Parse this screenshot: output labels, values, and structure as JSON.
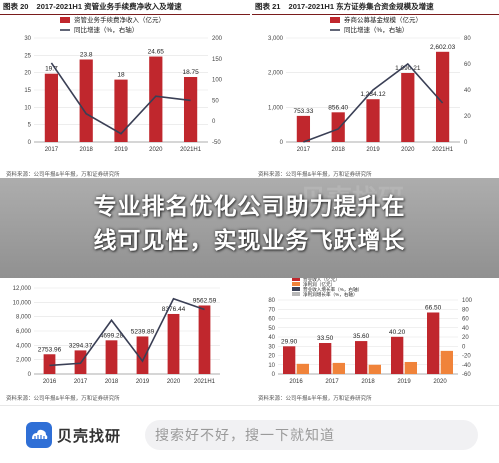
{
  "headline": {
    "line1": "专业排名优化公司助力提升在",
    "line2": "线可见性，实现业务飞跃增长"
  },
  "watermark": "贝壳找研",
  "footer": {
    "logo_text": "贝壳找研",
    "logo_icon": "shell-cloud-logo-icon",
    "search_placeholder": "搜索好不好，搜一下就知道",
    "accent_color": "#2f6fd6"
  },
  "colors": {
    "bar": "#c0272d",
    "line": "#3a3f55",
    "secondary_bar": "#f0833a"
  },
  "panels": [
    {
      "fig": "图表 20",
      "title": "2017-2021H1 资管业务手续费净收入及增速",
      "source": "资料来源：公司年报&半年报，万和证券研究所",
      "chart_data": {
        "type": "bar",
        "categories": [
          "2017",
          "2018",
          "2019",
          "2020",
          "2021H1"
        ],
        "series": [
          {
            "name": "资管业务手续费净收入（亿元）",
            "values": [
              19.7,
              23.8,
              18,
              24.65,
              18.75
            ],
            "labels": [
              "19.7",
              "23.8",
              "18",
              "24.65",
              "18.75"
            ]
          },
          {
            "name": "同比增速（%，右轴）",
            "values": [
              140,
              18,
              -30,
              60,
              50
            ]
          }
        ],
        "ylim": [
          0,
          30
        ],
        "yticks": [
          "0",
          "5",
          "10",
          "15",
          "20",
          "25",
          "30"
        ],
        "y2lim": [
          -50,
          200
        ],
        "y2ticks": [
          "-50",
          "0",
          "50",
          "100",
          "150",
          "200"
        ]
      }
    },
    {
      "fig": "图表 21",
      "title": "2017-2021H1 东方证券集合资金规模及增速",
      "source": "资料来源：公司年报&半年报，万和证券研究所",
      "chart_data": {
        "type": "bar",
        "categories": [
          "2017",
          "2018",
          "2019",
          "2020",
          "2021H1"
        ],
        "series": [
          {
            "name": "券商公募基金规模（亿元）",
            "values": [
              753.33,
              856.4,
              1234.12,
              1990.21,
              2602.03
            ],
            "labels": [
              "753.33",
              "856.40",
              "1,234.12",
              "1,990.21",
              "2,602.03"
            ]
          },
          {
            "name": "同比增速（%，右轴）",
            "values": [
              0,
              10,
              40,
              60,
              30
            ]
          }
        ],
        "ylim": [
          0,
          3000
        ],
        "yticks": [
          "0",
          "1,000",
          "2,000",
          "3,000"
        ],
        "y2lim": [
          0,
          80
        ],
        "y2ticks": [
          "0",
          "20",
          "40",
          "60",
          "80"
        ]
      }
    },
    {
      "fig": "",
      "title": "",
      "source": "资料来源：公司年报&半年报，万和证券研究所",
      "chart_data": {
        "type": "bar",
        "categories": [
          "2016",
          "2017",
          "2018",
          "2019",
          "2020",
          "2021H1"
        ],
        "series": [
          {
            "name": "",
            "values": [
              2753.96,
              3294.37,
              4699.28,
              5239.89,
              8376.44,
              9562.59
            ],
            "labels": [
              "2753.96",
              "3294.37",
              "4699.28",
              "5239.89",
              "8376.44",
              "9562.59"
            ]
          },
          {
            "name": "",
            "values": [
              8,
              10,
              50,
              12,
              70,
              60
            ]
          }
        ],
        "ylim": [
          0,
          12000
        ],
        "yticks": [
          "0",
          "2,000",
          "4,000",
          "6,000",
          "8,000",
          "10,000",
          "12,000"
        ],
        "y2lim": [
          0,
          80
        ],
        "y2ticks": []
      }
    },
    {
      "fig": "",
      "title": "",
      "source": "资料来源：公司年报&半年报，万和证券研究所",
      "legend": [
        "营业收入（亿元）",
        "净利润（亿元）",
        "营业收入增长率（%，右轴）",
        "净利润增长率（%，右轴）"
      ],
      "chart_data": {
        "type": "bar",
        "categories": [
          "2016",
          "2017",
          "2018",
          "2019",
          "2020"
        ],
        "series": [
          {
            "name": "营业收入（亿元）",
            "values": [
              29.9,
              33.5,
              35.6,
              40.2,
              66.5
            ],
            "labels": [
              "29.90",
              "33.50",
              "35.60",
              "40.20",
              "66.50"
            ]
          },
          {
            "name": "净利润（亿元）",
            "values": [
              11,
              12,
              10,
              13,
              25
            ]
          }
        ],
        "ylim": [
          0,
          80
        ],
        "yticks": [
          "0",
          "10",
          "20",
          "30",
          "40",
          "50",
          "60",
          "70",
          "80"
        ],
        "y2lim": [
          -60,
          100
        ],
        "y2ticks": [
          "-60",
          "-40",
          "-20",
          "0",
          "20",
          "40",
          "60",
          "80",
          "100"
        ]
      }
    }
  ]
}
